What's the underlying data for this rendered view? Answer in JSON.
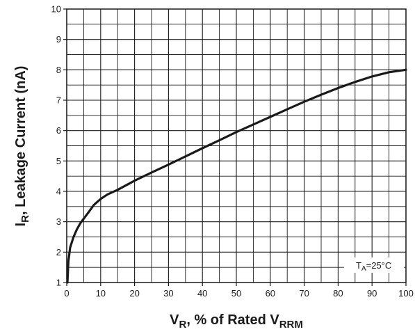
{
  "chart_data": {
    "type": "line",
    "xlabel": {
      "main": "V",
      "sub1": "R",
      "mid": ", % of Rated V",
      "sub2": "RRM"
    },
    "ylabel": {
      "main": "I",
      "sub": "R",
      "rest": ", Leakage Current (nA)"
    },
    "xlim": [
      0,
      100
    ],
    "ylim": [
      1,
      10
    ],
    "x_ticks": [
      "0",
      "10",
      "20",
      "30",
      "40",
      "50",
      "60",
      "70",
      "80",
      "90",
      "100"
    ],
    "y_ticks": [
      "1",
      "2",
      "3",
      "4",
      "5",
      "6",
      "7",
      "8",
      "9",
      "10"
    ],
    "grid": true,
    "annotation": {
      "main": "T",
      "sub": "A",
      "rest": "=25°C"
    },
    "series": [
      {
        "x": [
          0.2,
          0.5,
          1,
          2,
          3,
          4,
          5,
          6,
          7,
          8,
          10,
          12,
          15,
          20,
          25,
          30,
          35,
          40,
          45,
          50,
          55,
          60,
          65,
          70,
          75,
          80,
          85,
          90,
          95,
          100
        ],
        "y": [
          1.0,
          1.7,
          2.15,
          2.5,
          2.75,
          2.95,
          3.1,
          3.25,
          3.4,
          3.55,
          3.75,
          3.9,
          4.05,
          4.35,
          4.62,
          4.88,
          5.15,
          5.42,
          5.68,
          5.95,
          6.2,
          6.45,
          6.7,
          6.95,
          7.18,
          7.4,
          7.6,
          7.78,
          7.92,
          8.0
        ]
      }
    ]
  }
}
